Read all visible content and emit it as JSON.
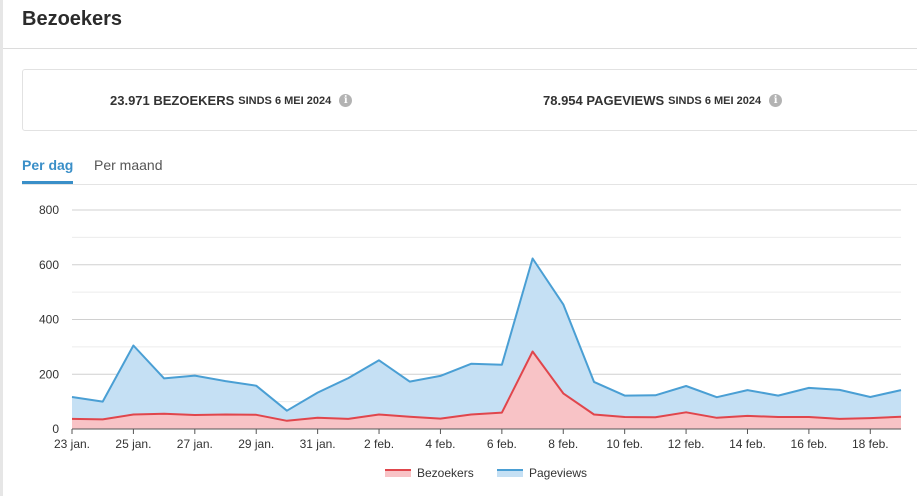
{
  "header": {
    "title": "Bezoekers"
  },
  "stats": {
    "visitors": {
      "count": "23.971 BEZOEKERS",
      "since": "SINDS 6 MEI 2024"
    },
    "pageviews": {
      "count": "78.954 PAGEVIEWS",
      "since": "SINDS 6 MEI 2024"
    },
    "info_glyph": "i"
  },
  "tabs": [
    {
      "label": "Per dag",
      "active": true
    },
    {
      "label": "Per maand",
      "active": false
    }
  ],
  "chart_data": {
    "type": "area",
    "ylim": [
      0,
      800
    ],
    "yticks": [
      "0",
      "200",
      "400",
      "600",
      "800"
    ],
    "xtick_labels": [
      "23 jan.",
      "25 jan.",
      "27 jan.",
      "29 jan.",
      "31 jan.",
      "2 feb.",
      "4 feb.",
      "6 feb.",
      "8 feb.",
      "10 feb.",
      "12 feb.",
      "14 feb.",
      "16 feb.",
      "18 feb."
    ],
    "grid": true,
    "legend_position": "bottom",
    "series": [
      {
        "name": "Bezoekers",
        "color": "#e0464c",
        "fill": "#f8c3c6",
        "values": [
          37,
          35,
          53,
          56,
          51,
          53,
          52,
          30,
          41,
          37,
          53,
          45,
          38,
          53,
          60,
          283,
          130,
          53,
          44,
          43,
          61,
          41,
          48,
          44,
          44,
          37,
          40,
          45
        ]
      },
      {
        "name": "Pageviews",
        "color": "#4a9fd4",
        "fill": "#c5e0f4",
        "values": [
          117,
          100,
          305,
          185,
          195,
          175,
          158,
          67,
          133,
          186,
          251,
          173,
          194,
          238,
          235,
          623,
          455,
          172,
          122,
          123,
          157,
          116,
          142,
          122,
          150,
          143,
          117,
          142
        ]
      }
    ]
  }
}
